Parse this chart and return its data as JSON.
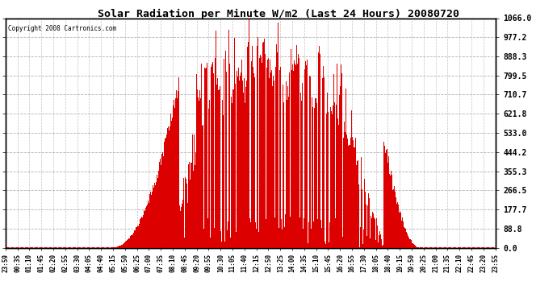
{
  "title": "Solar Radiation per Minute W/m2 (Last 24 Hours) 20080720",
  "copyright_text": "Copyright 2008 Cartronics.com",
  "bar_color": "#dd0000",
  "background_color": "#ffffff",
  "plot_background": "#ffffff",
  "grid_color": "#aaaaaa",
  "border_color": "#000000",
  "ymin": 0.0,
  "ymax": 1066.0,
  "yticks": [
    0.0,
    88.8,
    177.7,
    266.5,
    355.3,
    444.2,
    533.0,
    621.8,
    710.7,
    799.5,
    888.3,
    977.2,
    1066.0
  ],
  "xtick_labels": [
    "23:59",
    "00:35",
    "01:10",
    "01:45",
    "02:20",
    "02:55",
    "03:30",
    "04:05",
    "04:40",
    "05:15",
    "05:50",
    "06:25",
    "07:00",
    "07:35",
    "08:10",
    "08:45",
    "09:20",
    "09:55",
    "10:30",
    "11:05",
    "11:40",
    "12:15",
    "12:50",
    "13:25",
    "14:00",
    "14:35",
    "15:10",
    "15:45",
    "16:20",
    "16:55",
    "17:30",
    "18:05",
    "18:40",
    "19:15",
    "19:50",
    "20:25",
    "21:00",
    "21:35",
    "22:10",
    "22:45",
    "23:20",
    "23:55"
  ],
  "num_points": 1440,
  "sunrise_min": 310,
  "sunset_min": 1215,
  "solar_noon_min": 745,
  "solar_max": 1066.0,
  "base_plateau": 290.0,
  "spike_base": 200.0
}
